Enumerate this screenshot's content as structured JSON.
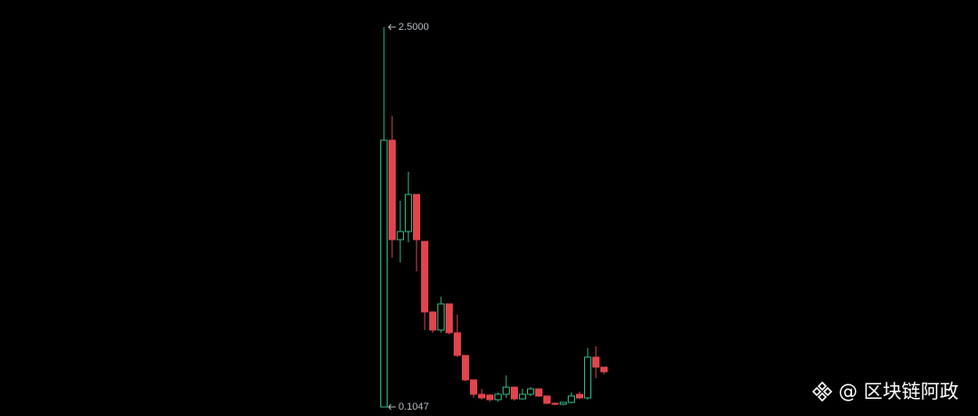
{
  "chart_data": {
    "type": "candlestick",
    "up_color": "#2ebd85",
    "down_color": "#e0444c",
    "ylim": [
      0.048,
      2.671
    ],
    "annotations": [
      {
        "value": 2.5,
        "label": "2.5000"
      },
      {
        "value": 0.1047,
        "label": "0.1047"
      }
    ],
    "open": [
      0.1047,
      1.787,
      1.16,
      1.211,
      1.445,
      1.149,
      0.704,
      0.59,
      0.755,
      0.573,
      0.43,
      0.276,
      0.185,
      0.18,
      0.151,
      0.185,
      0.23,
      0.156,
      0.185,
      0.219,
      0.174,
      0.128,
      0.122,
      0.134,
      0.185,
      0.162,
      0.419,
      0.356
    ],
    "high": [
      2.5,
      1.941,
      1.405,
      1.588,
      1.445,
      1.149,
      0.704,
      0.801,
      0.755,
      0.687,
      0.43,
      0.276,
      0.219,
      0.185,
      0.196,
      0.304,
      0.23,
      0.219,
      0.23,
      0.219,
      0.174,
      0.134,
      0.134,
      0.196,
      0.202,
      0.476,
      0.487,
      0.356
    ],
    "low": [
      0.1047,
      1.046,
      1.017,
      1.143,
      0.96,
      0.59,
      0.573,
      0.573,
      0.562,
      0.419,
      0.265,
      0.162,
      0.151,
      0.139,
      0.139,
      0.162,
      0.145,
      0.151,
      0.174,
      0.168,
      0.122,
      0.116,
      0.116,
      0.128,
      0.156,
      0.151,
      0.287,
      0.31
    ],
    "close": [
      1.787,
      1.16,
      1.211,
      1.445,
      1.16,
      0.704,
      0.59,
      0.755,
      0.573,
      0.43,
      0.276,
      0.185,
      0.162,
      0.151,
      0.185,
      0.23,
      0.156,
      0.185,
      0.219,
      0.174,
      0.128,
      0.122,
      0.134,
      0.174,
      0.162,
      0.419,
      0.356,
      0.327
    ]
  },
  "watermark": "@ 区块链阿政"
}
